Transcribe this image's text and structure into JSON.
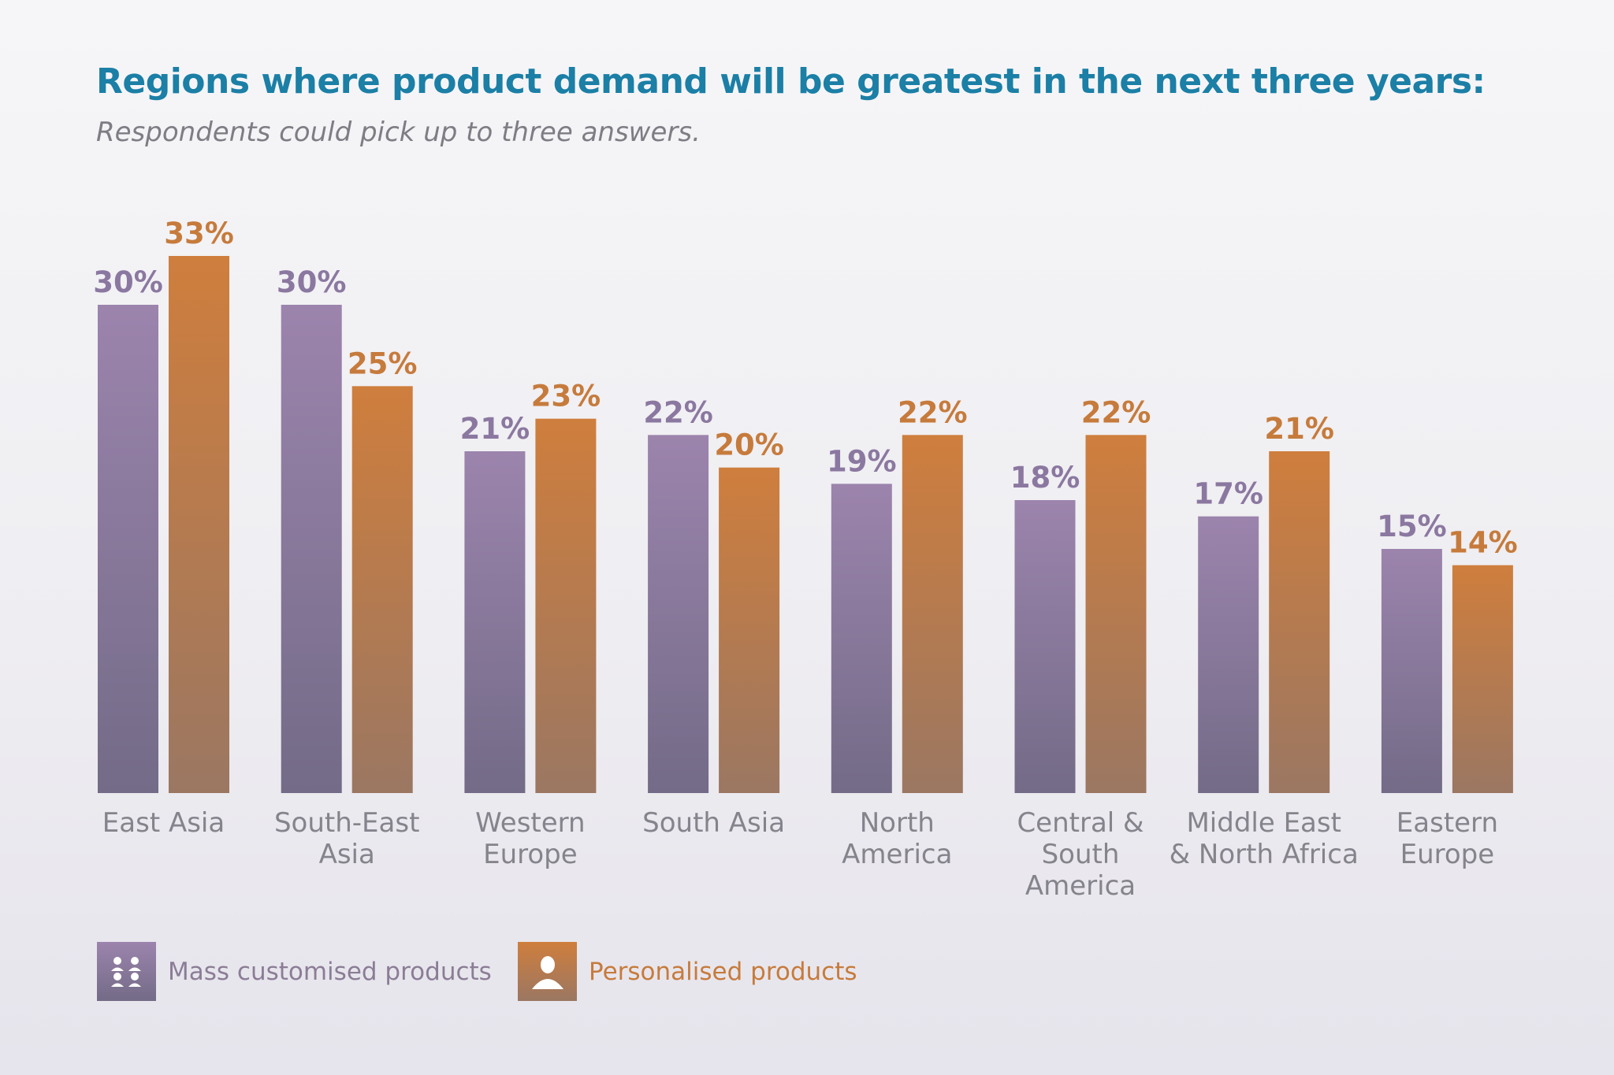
{
  "title": "Regions where product demand will be greatest in the next three years:",
  "subtitle": "Respondents could pick up to three answers.",
  "colors": {
    "title": "#1b7fa6",
    "mass": "#987fa8",
    "mass_dark": "#736a88",
    "mass_label": "#8b78a0",
    "personal": "#c97c3e",
    "personal_dark": "#9a7660",
    "personal_label": "#c67b3c"
  },
  "legend": {
    "mass": {
      "label": "Mass customised products",
      "icon": "group-of-people-icon"
    },
    "personal": {
      "label": "Personalised products",
      "icon": "person-icon"
    }
  },
  "chart_data": {
    "type": "bar",
    "title": "Regions where product demand will be greatest in the next three years:",
    "subtitle": "Respondents could pick up to three answers.",
    "categories": [
      [
        "East Asia"
      ],
      [
        "South-East",
        "Asia"
      ],
      [
        "Western",
        "Europe"
      ],
      [
        "South Asia"
      ],
      [
        "North",
        "America"
      ],
      [
        "Central &",
        "South",
        "America"
      ],
      [
        "Middle East",
        "& North Africa"
      ],
      [
        "Eastern",
        "Europe"
      ]
    ],
    "series": [
      {
        "name": "Mass customised products",
        "values": [
          30,
          30,
          21,
          22,
          19,
          18,
          17,
          15
        ],
        "labels": [
          "30%",
          "30%",
          "21%",
          "22%",
          "19%",
          "18%",
          "17%",
          "15%"
        ]
      },
      {
        "name": "Personalised products",
        "values": [
          33,
          25,
          23,
          20,
          22,
          22,
          21,
          14
        ],
        "labels": [
          "33%",
          "25%",
          "23%",
          "20%",
          "22%",
          "22%",
          "21%",
          "14%"
        ]
      }
    ],
    "ylim": [
      0,
      33
    ],
    "grid": false,
    "legend_position": "bottom-left"
  }
}
